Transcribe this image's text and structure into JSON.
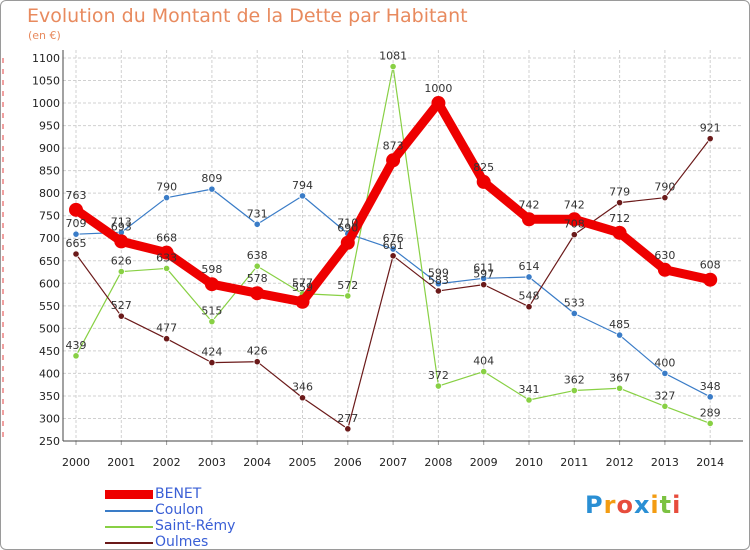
{
  "chart_data": {
    "type": "line",
    "title": "Evolution du Montant de la Dette par Habitant",
    "subtitle": "(en €)",
    "xlabel": "",
    "ylabel": "",
    "ylim": [
      250,
      1100
    ],
    "y_ticks": [
      250,
      300,
      350,
      400,
      450,
      500,
      550,
      600,
      650,
      700,
      750,
      800,
      850,
      900,
      950,
      1000,
      1050,
      1100
    ],
    "categories": [
      "2000",
      "2001",
      "2002",
      "2003",
      "2004",
      "2005",
      "2006",
      "2007",
      "2008",
      "2009",
      "2010",
      "2011",
      "2012",
      "2013",
      "2014"
    ],
    "grid": true,
    "legend_position": "bottom-left",
    "series": [
      {
        "name": "BENET",
        "color": "#ee0000",
        "values": [
          763,
          693,
          668,
          598,
          578,
          559,
          690,
          873,
          1000,
          825,
          742,
          742,
          712,
          630,
          608
        ]
      },
      {
        "name": "Coulon",
        "color": "#3a7cc7",
        "values": [
          709,
          713,
          790,
          809,
          731,
          794,
          710,
          676,
          599,
          611,
          614,
          533,
          485,
          400,
          348
        ]
      },
      {
        "name": "Saint-Rémy",
        "color": "#88d044",
        "values": [
          439,
          626,
          633,
          515,
          638,
          577,
          572,
          1081,
          372,
          404,
          341,
          362,
          367,
          327,
          289
        ]
      },
      {
        "name": "Oulmes",
        "color": "#6b1a1a",
        "values": [
          665,
          527,
          477,
          424,
          426,
          346,
          277,
          661,
          583,
          597,
          548,
          708,
          779,
          790,
          921
        ]
      }
    ]
  },
  "logo": {
    "letters": [
      "P",
      "r",
      "o",
      "x",
      "i",
      "t",
      "i"
    ],
    "colors": [
      "#2a8fd4",
      "#f39c12",
      "#e74c3c",
      "#2a8fd4",
      "#f39c12",
      "#7cc242",
      "#e74c3c"
    ]
  }
}
